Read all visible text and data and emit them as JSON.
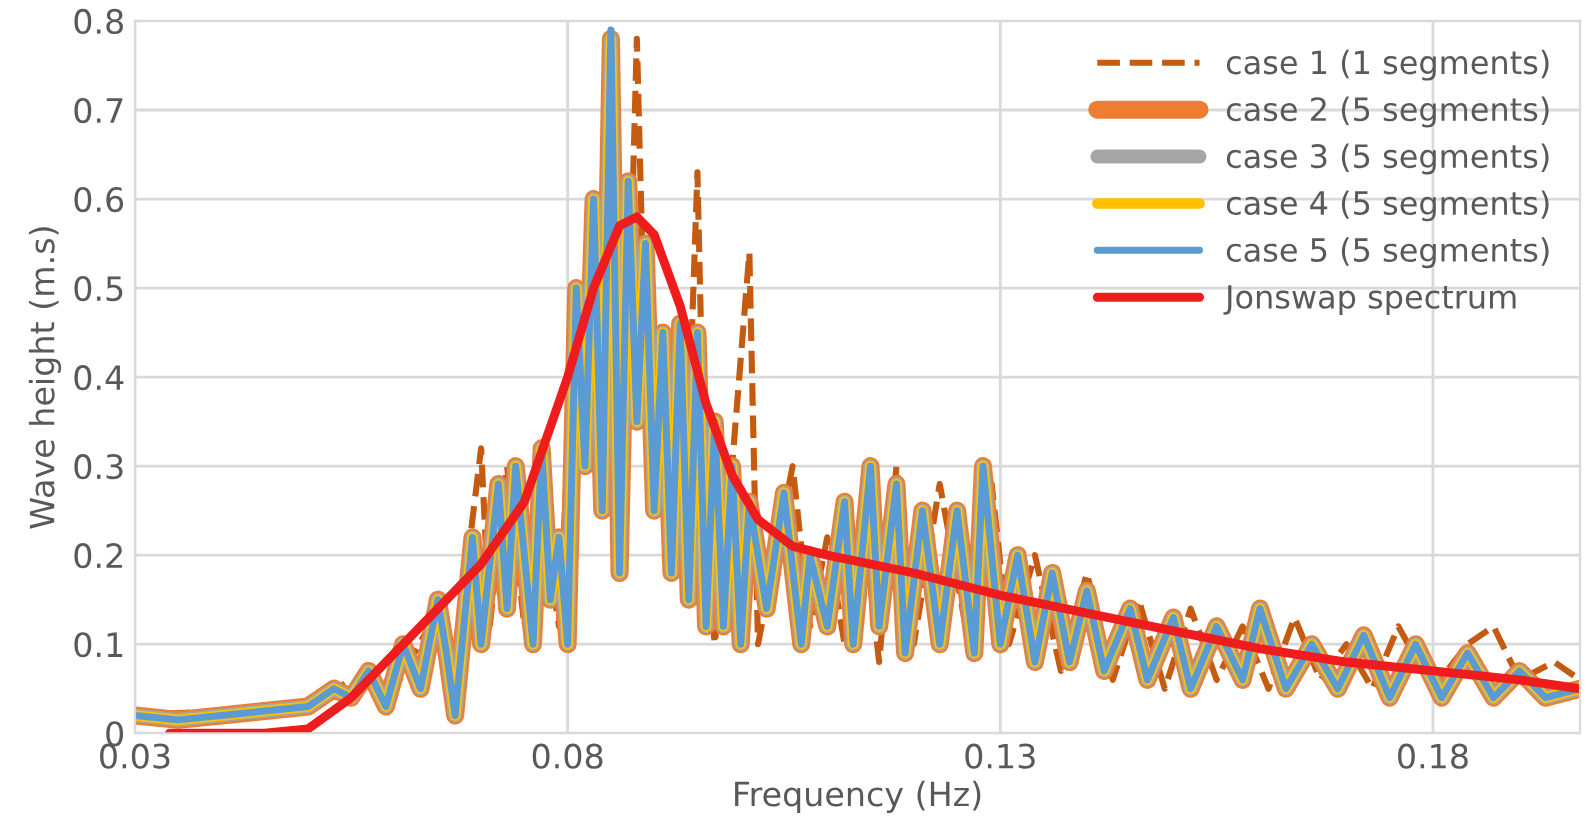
{
  "chart_data": {
    "type": "line",
    "xlabel": "Frequency (Hz)",
    "ylabel": "Wave height (m.s)",
    "x": [
      0.03,
      0.035,
      0.04,
      0.045,
      0.05,
      0.053,
      0.055,
      0.057,
      0.059,
      0.061,
      0.063,
      0.065,
      0.066,
      0.067,
      0.069,
      0.07,
      0.072,
      0.073,
      0.074,
      0.076,
      0.077,
      0.078,
      0.079,
      0.08,
      0.081,
      0.082,
      0.083,
      0.084,
      0.085,
      0.086,
      0.087,
      0.088,
      0.089,
      0.09,
      0.091,
      0.092,
      0.093,
      0.094,
      0.095,
      0.096,
      0.097,
      0.098,
      0.099,
      0.1,
      0.101,
      0.103,
      0.105,
      0.107,
      0.108,
      0.11,
      0.112,
      0.113,
      0.115,
      0.116,
      0.118,
      0.119,
      0.121,
      0.123,
      0.125,
      0.127,
      0.128,
      0.13,
      0.132,
      0.134,
      0.136,
      0.138,
      0.14,
      0.142,
      0.145,
      0.147,
      0.15,
      0.152,
      0.155,
      0.158,
      0.16,
      0.163,
      0.166,
      0.169,
      0.172,
      0.175,
      0.178,
      0.181,
      0.184,
      0.187,
      0.19,
      0.193,
      0.197
    ],
    "series": [
      {
        "name": "case 1 (1 segments)",
        "color": "#c55a11",
        "line_style": "dashed",
        "x": [
          0.03,
          0.04,
          0.05,
          0.055,
          0.06,
          0.064,
          0.067,
          0.07,
          0.071,
          0.073,
          0.075,
          0.077,
          0.079,
          0.081,
          0.083,
          0.085,
          0.087,
          0.088,
          0.089,
          0.091,
          0.092,
          0.094,
          0.095,
          0.096,
          0.097,
          0.099,
          0.101,
          0.102,
          0.104,
          0.106,
          0.108,
          0.11,
          0.112,
          0.114,
          0.116,
          0.118,
          0.12,
          0.123,
          0.126,
          0.129,
          0.131,
          0.134,
          0.137,
          0.14,
          0.143,
          0.146,
          0.149,
          0.152,
          0.155,
          0.158,
          0.161,
          0.164,
          0.167,
          0.17,
          0.173,
          0.176,
          0.18,
          0.184,
          0.187,
          0.19,
          0.194,
          0.197
        ],
        "values": [
          0.02,
          0.025,
          0.03,
          0.06,
          0.05,
          0.12,
          0.08,
          0.32,
          0.12,
          0.3,
          0.12,
          0.25,
          0.12,
          0.5,
          0.3,
          0.6,
          0.42,
          0.78,
          0.4,
          0.45,
          0.25,
          0.35,
          0.63,
          0.2,
          0.1,
          0.3,
          0.54,
          0.1,
          0.2,
          0.3,
          0.12,
          0.22,
          0.1,
          0.25,
          0.08,
          0.3,
          0.1,
          0.28,
          0.12,
          0.28,
          0.1,
          0.2,
          0.07,
          0.18,
          0.06,
          0.15,
          0.05,
          0.14,
          0.06,
          0.12,
          0.05,
          0.13,
          0.06,
          0.1,
          0.05,
          0.12,
          0.05,
          0.1,
          0.12,
          0.06,
          0.08,
          0.06
        ]
      },
      {
        "name": "case 2 (5 segments)",
        "color": "#ed7d31",
        "values": [
          0.02,
          0.015,
          0.02,
          0.025,
          0.03,
          0.05,
          0.04,
          0.07,
          0.03,
          0.1,
          0.05,
          0.15,
          0.09,
          0.02,
          0.22,
          0.1,
          0.28,
          0.14,
          0.3,
          0.1,
          0.32,
          0.15,
          0.22,
          0.1,
          0.5,
          0.3,
          0.6,
          0.25,
          0.78,
          0.18,
          0.62,
          0.35,
          0.55,
          0.25,
          0.45,
          0.18,
          0.46,
          0.15,
          0.45,
          0.12,
          0.35,
          0.12,
          0.3,
          0.1,
          0.26,
          0.14,
          0.27,
          0.1,
          0.2,
          0.12,
          0.26,
          0.1,
          0.3,
          0.12,
          0.28,
          0.09,
          0.25,
          0.1,
          0.25,
          0.09,
          0.3,
          0.1,
          0.2,
          0.08,
          0.18,
          0.08,
          0.16,
          0.07,
          0.14,
          0.06,
          0.13,
          0.05,
          0.12,
          0.06,
          0.14,
          0.05,
          0.1,
          0.05,
          0.11,
          0.04,
          0.1,
          0.04,
          0.09,
          0.04,
          0.07,
          0.04,
          0.05
        ]
      },
      {
        "name": "case 3 (5 segments)",
        "color": "#a5a5a5",
        "values": [
          0.02,
          0.015,
          0.02,
          0.025,
          0.03,
          0.05,
          0.04,
          0.07,
          0.03,
          0.1,
          0.05,
          0.15,
          0.09,
          0.02,
          0.22,
          0.1,
          0.28,
          0.14,
          0.3,
          0.1,
          0.32,
          0.15,
          0.22,
          0.1,
          0.5,
          0.3,
          0.6,
          0.25,
          0.78,
          0.18,
          0.62,
          0.35,
          0.55,
          0.25,
          0.45,
          0.18,
          0.46,
          0.15,
          0.45,
          0.12,
          0.35,
          0.12,
          0.3,
          0.1,
          0.26,
          0.14,
          0.27,
          0.1,
          0.2,
          0.12,
          0.26,
          0.1,
          0.3,
          0.12,
          0.28,
          0.09,
          0.25,
          0.1,
          0.25,
          0.09,
          0.3,
          0.1,
          0.2,
          0.08,
          0.18,
          0.08,
          0.16,
          0.07,
          0.14,
          0.06,
          0.13,
          0.05,
          0.12,
          0.06,
          0.14,
          0.05,
          0.1,
          0.05,
          0.11,
          0.04,
          0.1,
          0.04,
          0.09,
          0.04,
          0.07,
          0.04,
          0.05
        ]
      },
      {
        "name": "case 4 (5 segments)",
        "color": "#ffc000",
        "values": [
          0.02,
          0.015,
          0.02,
          0.025,
          0.03,
          0.05,
          0.04,
          0.07,
          0.03,
          0.1,
          0.05,
          0.15,
          0.09,
          0.02,
          0.22,
          0.1,
          0.28,
          0.14,
          0.3,
          0.1,
          0.32,
          0.15,
          0.22,
          0.1,
          0.5,
          0.3,
          0.6,
          0.25,
          0.78,
          0.18,
          0.62,
          0.35,
          0.55,
          0.25,
          0.45,
          0.18,
          0.46,
          0.15,
          0.45,
          0.12,
          0.35,
          0.12,
          0.3,
          0.1,
          0.26,
          0.14,
          0.27,
          0.1,
          0.2,
          0.12,
          0.26,
          0.1,
          0.3,
          0.12,
          0.28,
          0.09,
          0.25,
          0.1,
          0.25,
          0.09,
          0.3,
          0.1,
          0.2,
          0.08,
          0.18,
          0.08,
          0.16,
          0.07,
          0.14,
          0.06,
          0.13,
          0.05,
          0.12,
          0.06,
          0.14,
          0.05,
          0.1,
          0.05,
          0.11,
          0.04,
          0.1,
          0.04,
          0.09,
          0.04,
          0.07,
          0.04,
          0.05
        ]
      },
      {
        "name": "case 5 (5 segments)",
        "color": "#5b9bd5",
        "values": [
          0.02,
          0.015,
          0.02,
          0.025,
          0.03,
          0.05,
          0.04,
          0.07,
          0.03,
          0.1,
          0.05,
          0.15,
          0.09,
          0.02,
          0.22,
          0.1,
          0.28,
          0.14,
          0.3,
          0.1,
          0.32,
          0.15,
          0.22,
          0.1,
          0.5,
          0.3,
          0.6,
          0.25,
          0.79,
          0.18,
          0.62,
          0.35,
          0.55,
          0.25,
          0.45,
          0.18,
          0.46,
          0.15,
          0.45,
          0.12,
          0.35,
          0.12,
          0.3,
          0.1,
          0.26,
          0.14,
          0.27,
          0.1,
          0.2,
          0.12,
          0.26,
          0.1,
          0.3,
          0.12,
          0.28,
          0.09,
          0.25,
          0.1,
          0.25,
          0.09,
          0.3,
          0.1,
          0.2,
          0.08,
          0.18,
          0.08,
          0.16,
          0.07,
          0.14,
          0.06,
          0.13,
          0.05,
          0.12,
          0.06,
          0.14,
          0.05,
          0.1,
          0.05,
          0.11,
          0.04,
          0.1,
          0.04,
          0.09,
          0.04,
          0.07,
          0.04,
          0.05
        ]
      },
      {
        "name": "Jonswap spectrum",
        "color": "#ee1c1c",
        "x": [
          0.034,
          0.04,
          0.045,
          0.05,
          0.055,
          0.06,
          0.065,
          0.07,
          0.075,
          0.08,
          0.083,
          0.086,
          0.088,
          0.09,
          0.093,
          0.096,
          0.099,
          0.102,
          0.106,
          0.11,
          0.12,
          0.13,
          0.14,
          0.15,
          0.16,
          0.17,
          0.18,
          0.19,
          0.197
        ],
        "values": [
          0,
          0,
          0,
          0.005,
          0.04,
          0.09,
          0.14,
          0.19,
          0.26,
          0.4,
          0.5,
          0.57,
          0.58,
          0.56,
          0.48,
          0.37,
          0.29,
          0.24,
          0.21,
          0.2,
          0.18,
          0.155,
          0.135,
          0.115,
          0.095,
          0.08,
          0.07,
          0.06,
          0.05
        ]
      }
    ],
    "xlim": [
      0.03,
      0.197
    ],
    "xticks": [
      0.03,
      0.08,
      0.13,
      0.18
    ],
    "ylim": [
      0,
      0.8
    ],
    "yticks": [
      0,
      0.1,
      0.2,
      0.3,
      0.4,
      0.5,
      0.6,
      0.7,
      0.8
    ],
    "grid": true,
    "legend": "top right",
    "line_style": "solid",
    "marker": "none"
  }
}
